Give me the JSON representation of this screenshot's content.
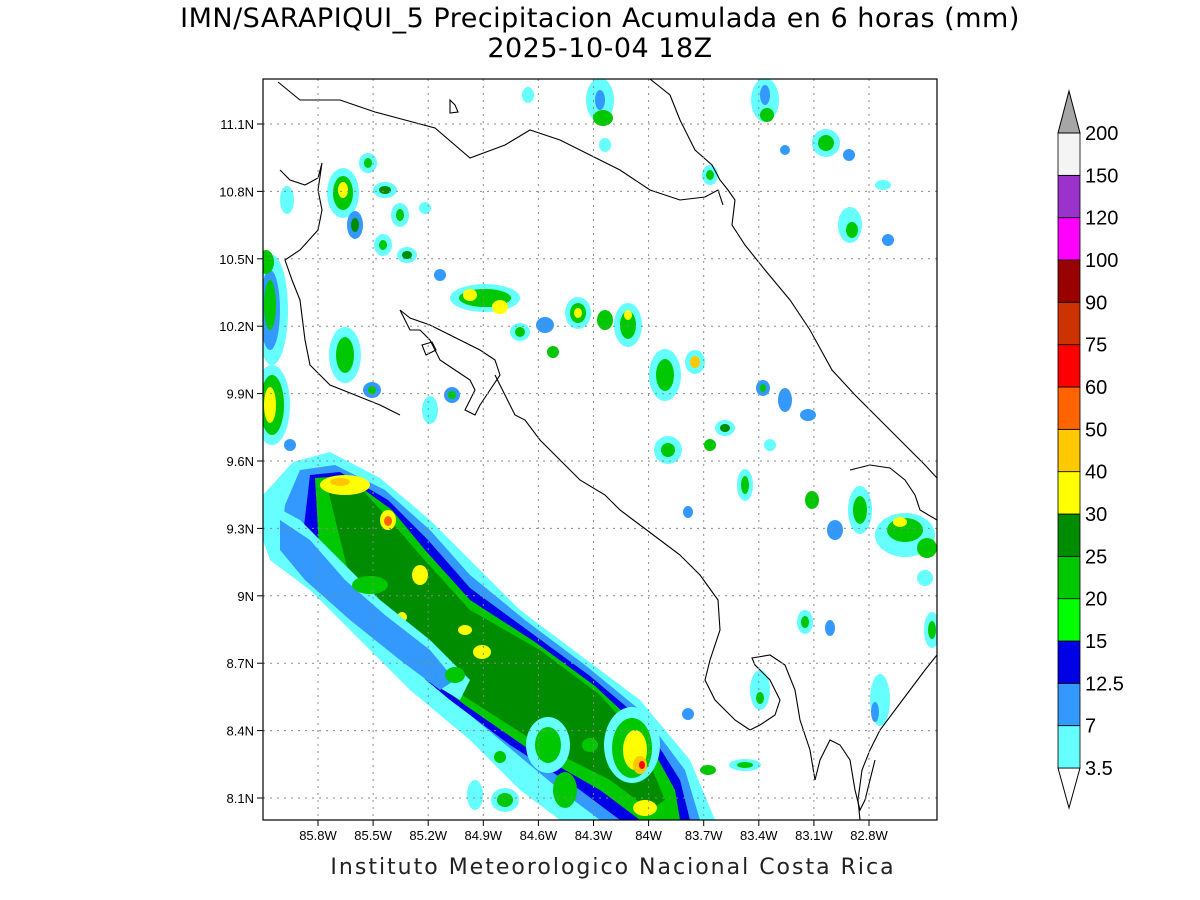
{
  "title_line1": "IMN/SARAPIQUI_5 Precipitacion Acumulada en 6 horas (mm)",
  "title_line2": "2025-10-04 18Z",
  "footer": "Instituto Meteorologico Nacional Costa Rica",
  "map": {
    "lon_range": [
      -86.1,
      -83.0
    ],
    "lat_range": [
      8.0,
      11.3
    ],
    "lon_ticks": [
      "85.8W",
      "85.5W",
      "85.2W",
      "84.9W",
      "84.6W",
      "84.3W",
      "84W",
      "83.7W",
      "83.4W",
      "83.1W",
      "82.8W"
    ],
    "lat_ticks": [
      "8.1N",
      "8.4N",
      "8.7N",
      "9N",
      "9.3N",
      "9.6N",
      "9.9N",
      "10.2N",
      "10.5N",
      "10.8N",
      "11.1N"
    ],
    "grid": "dotted"
  },
  "colorbar": {
    "labels": [
      "3.5",
      "7",
      "12.5",
      "15",
      "20",
      "25",
      "30",
      "40",
      "50",
      "60",
      "75",
      "90",
      "100",
      "120",
      "150",
      "200"
    ],
    "colors": [
      "#66ffff",
      "#3399ff",
      "#0000e6",
      "#00ff00",
      "#00c800",
      "#008c00",
      "#ffff00",
      "#ffc800",
      "#ff6400",
      "#ff0000",
      "#cc3300",
      "#990000",
      "#ff00ff",
      "#9933cc",
      "#f4f4f4",
      "#a6a6a6"
    ]
  }
}
